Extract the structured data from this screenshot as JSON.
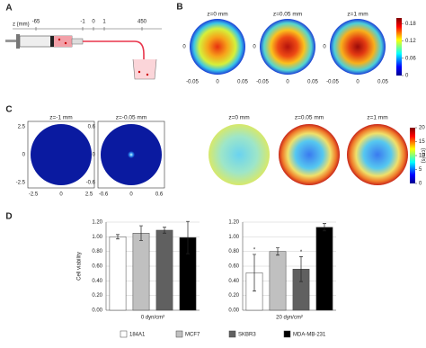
{
  "panel_a": {
    "label": "A",
    "axis_label": "z (mm)",
    "positions": [
      "-65",
      "-1",
      "0",
      "1",
      "450"
    ]
  },
  "panel_b": {
    "label": "B",
    "titles": [
      "z=0 mm",
      "z=0.05 mm",
      "z=1 mm"
    ],
    "xticks": [
      -0.05,
      0,
      0.05
    ],
    "ytick": 0,
    "clim": [
      0,
      0.2
    ],
    "cticks": [
      0,
      0.06,
      0.12,
      0.18
    ]
  },
  "panel_c": {
    "label": "C",
    "colorbar_label": "(cm/s)",
    "plots": [
      {
        "title": "z=-1 mm",
        "xticks": [
          -2.5,
          0,
          2.5
        ],
        "yticks": [
          2.5,
          0,
          -2.5
        ]
      },
      {
        "title": "z=-0.05 mm",
        "xticks": [
          -0.6,
          0,
          0.6
        ],
        "yticks": [
          0.6,
          0,
          -0.6
        ]
      },
      {
        "title": "z=0 mm"
      },
      {
        "title": "z=0.05 mm"
      },
      {
        "title": "z=1 mm"
      }
    ],
    "clim": [
      0,
      20
    ],
    "cticks": [
      0,
      5,
      10,
      15,
      20
    ]
  },
  "panel_d_label": "D",
  "chart_data": {
    "type": "bar",
    "ylabel": "Cell viability",
    "categories": [
      "0 dyn/cm²",
      "20 dyn/cm²"
    ],
    "ylim": [
      0,
      1.2
    ],
    "yticks": [
      {
        "value": 0,
        "label": "0.00"
      },
      {
        "value": 0.2,
        "label": "0.20"
      },
      {
        "value": 0.4,
        "label": "0.40"
      },
      {
        "value": 0.6,
        "label": "0.60"
      },
      {
        "value": 0.8,
        "label": "0.80"
      },
      {
        "value": 1.0,
        "label": "1.00"
      },
      {
        "value": 1.2,
        "label": "1.20"
      }
    ],
    "series": [
      {
        "name": "184A1",
        "color": "#ffffff",
        "values": [
          1.0,
          0.51
        ],
        "errors": [
          0.03,
          0.25
        ],
        "annotations": [
          null,
          "*"
        ]
      },
      {
        "name": "MCF7",
        "color": "#c0c0c0",
        "values": [
          1.05,
          0.8
        ],
        "errors": [
          0.1,
          0.05
        ]
      },
      {
        "name": "SKBR3",
        "color": "#606060",
        "values": [
          1.09,
          0.56
        ],
        "errors": [
          0.04,
          0.17
        ],
        "annotations": [
          null,
          "*"
        ]
      },
      {
        "name": "MDA-MB-231",
        "color": "#000000",
        "values": [
          0.99,
          1.13
        ],
        "errors": [
          0.22,
          0.05
        ]
      }
    ]
  }
}
